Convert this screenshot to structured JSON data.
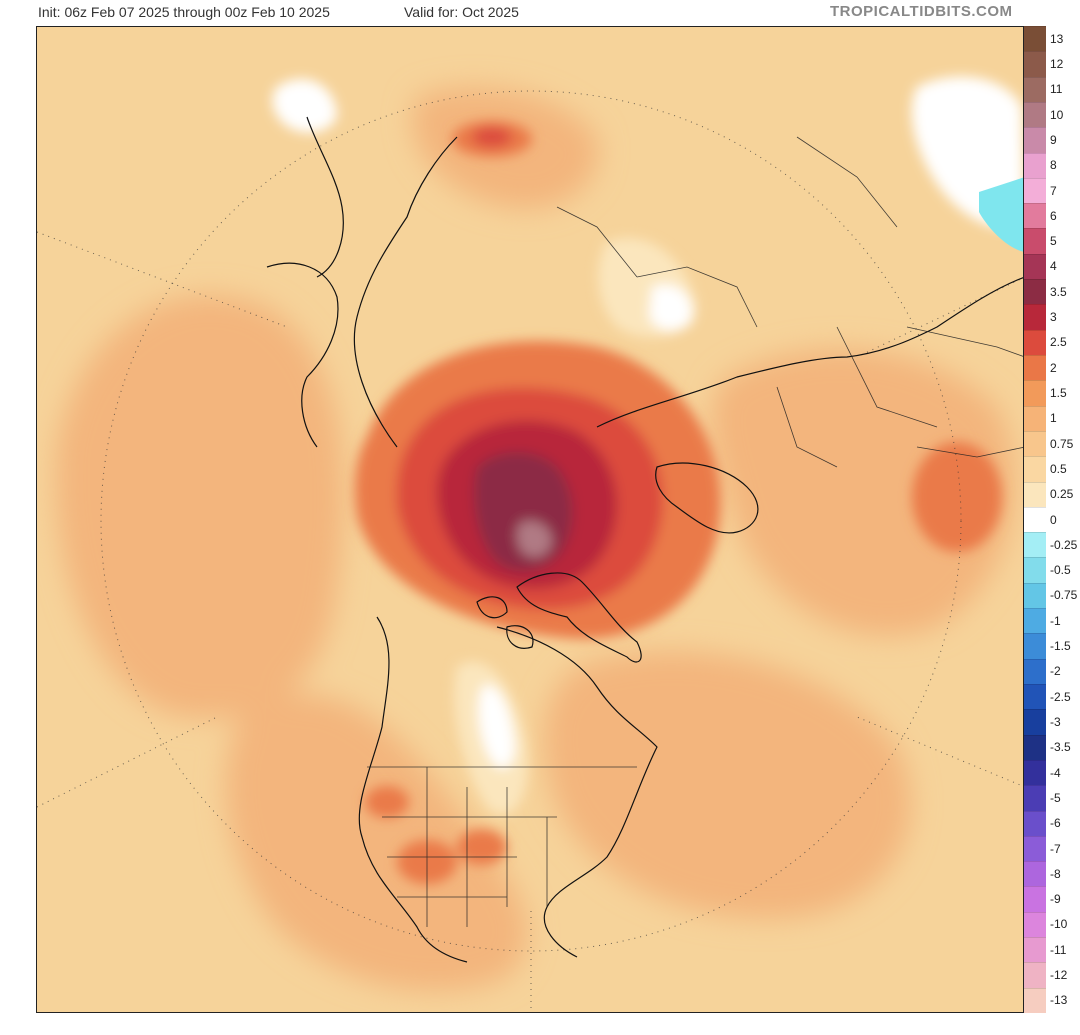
{
  "header": {
    "init": "Init: 06z Feb 07 2025 through 00z Feb 10 2025",
    "valid": "Valid for: Oct 2025",
    "brand": "TROPICALTIDBITS.COM"
  },
  "colors": {
    "base_field": "#f6d39a",
    "cold_anomaly": "#7fe6ee"
  },
  "map": {
    "projection": "north-polar-stereographic",
    "coastlines": true,
    "political_boundaries": true,
    "dotted_gridlines": true
  },
  "colorbar": {
    "levels": [
      {
        "label": "13",
        "color": "#7a4e36"
      },
      {
        "label": "12",
        "color": "#8c5a4a"
      },
      {
        "label": "11",
        "color": "#9c6b62"
      },
      {
        "label": "10",
        "color": "#b07a84"
      },
      {
        "label": "9",
        "color": "#c98aa9"
      },
      {
        "label": "8",
        "color": "#e9a1cf"
      },
      {
        "label": "7",
        "color": "#f3aed8"
      },
      {
        "label": "6",
        "color": "#e27b9d"
      },
      {
        "label": "5",
        "color": "#c94c6c"
      },
      {
        "label": "4",
        "color": "#a53556"
      },
      {
        "label": "3.5",
        "color": "#8c2c44"
      },
      {
        "label": "3",
        "color": "#b8283a"
      },
      {
        "label": "2.5",
        "color": "#dc4b3d"
      },
      {
        "label": "2",
        "color": "#ea7747"
      },
      {
        "label": "1.5",
        "color": "#f29a5a"
      },
      {
        "label": "1",
        "color": "#f6b377"
      },
      {
        "label": "0.75",
        "color": "#f8c68c"
      },
      {
        "label": "0.5",
        "color": "#fad7a2"
      },
      {
        "label": "0.25",
        "color": "#fbe6bd"
      },
      {
        "label": "0",
        "color": "#ffffff"
      },
      {
        "label": "-0.25",
        "color": "#a4eef5"
      },
      {
        "label": "-0.5",
        "color": "#82dceb"
      },
      {
        "label": "-0.75",
        "color": "#63c6e6"
      },
      {
        "label": "-1",
        "color": "#4eabe3"
      },
      {
        "label": "-1.5",
        "color": "#3c8cd8"
      },
      {
        "label": "-2",
        "color": "#2d6fcb"
      },
      {
        "label": "-2.5",
        "color": "#2154b7"
      },
      {
        "label": "-3",
        "color": "#183f9e"
      },
      {
        "label": "-3.5",
        "color": "#1e3185"
      },
      {
        "label": "-4",
        "color": "#33309c"
      },
      {
        "label": "-5",
        "color": "#4b3db4"
      },
      {
        "label": "-6",
        "color": "#6a4fcb"
      },
      {
        "label": "-7",
        "color": "#8b5cd8"
      },
      {
        "label": "-8",
        "color": "#ad66de"
      },
      {
        "label": "-9",
        "color": "#c973e1"
      },
      {
        "label": "-10",
        "color": "#dc85dd"
      },
      {
        "label": "-11",
        "color": "#e79ad0"
      },
      {
        "label": "-12",
        "color": "#efb3c4"
      },
      {
        "label": "-13",
        "color": "#f6cdc0"
      }
    ]
  }
}
